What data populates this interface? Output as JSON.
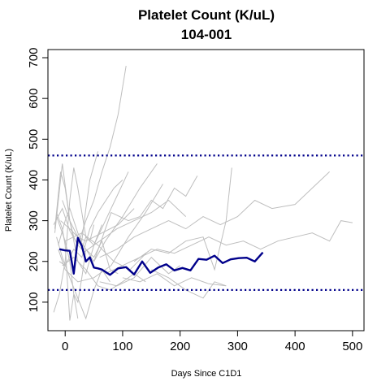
{
  "chart_data": {
    "type": "line",
    "title": "Platelet Count (K/uL)",
    "subtitle": "104-001",
    "xlabel": "Days Since C1D1",
    "ylabel": "Platelet Count (K/uL)",
    "xlim": [
      -30,
      520
    ],
    "ylim": [
      30,
      720
    ],
    "xticks": [
      0,
      100,
      200,
      300,
      400,
      500
    ],
    "yticks": [
      100,
      200,
      300,
      400,
      500,
      600,
      700
    ],
    "grid": false,
    "reference_lines": [
      {
        "y": 130,
        "color": "#00008b",
        "style": "dotted"
      },
      {
        "y": 460,
        "color": "#00008b",
        "style": "dotted"
      }
    ],
    "highlight_series": {
      "color": "#00008b",
      "x": [
        -10,
        0,
        8,
        15,
        22,
        29,
        36,
        43,
        50,
        57,
        64,
        78,
        92,
        106,
        120,
        134,
        148,
        162,
        176,
        190,
        204,
        218,
        232,
        246,
        260,
        274,
        288,
        302,
        316,
        330,
        344
      ],
      "values": [
        230,
        227,
        226,
        170,
        258,
        238,
        200,
        210,
        185,
        183,
        180,
        167,
        183,
        186,
        168,
        200,
        172,
        185,
        193,
        178,
        184,
        178,
        206,
        204,
        214,
        196,
        205,
        208,
        209,
        200,
        222
      ]
    },
    "background_series": {
      "color": "#bebebe",
      "lines": [
        {
          "x": [
            -20,
            -5,
            8,
            22,
            36,
            50,
            64,
            78,
            92,
            106
          ],
          "values": [
            290,
            330,
            275,
            240,
            300,
            350,
            420,
            480,
            560,
            680
          ]
        },
        {
          "x": [
            -15,
            0,
            8,
            15,
            22,
            29,
            36,
            50,
            64,
            78,
            92
          ],
          "values": [
            310,
            250,
            200,
            120,
            100,
            160,
            230,
            210,
            250,
            180,
            170
          ]
        },
        {
          "x": [
            -18,
            -8,
            0,
            8,
            15,
            22,
            29,
            36,
            43,
            50
          ],
          "values": [
            280,
            420,
            380,
            300,
            260,
            240,
            230,
            260,
            250,
            290
          ]
        },
        {
          "x": [
            -15,
            -5,
            0,
            8,
            15,
            22
          ],
          "values": [
            320,
            280,
            240,
            55,
            120,
            60
          ]
        },
        {
          "x": [
            -12,
            0,
            8,
            15,
            22,
            29,
            36,
            43,
            57
          ],
          "values": [
            240,
            300,
            330,
            300,
            270,
            250,
            330,
            400,
            470
          ]
        },
        {
          "x": [
            -20,
            -10,
            0,
            8,
            15,
            22,
            36,
            50,
            70,
            90,
            110
          ],
          "values": [
            75,
            120,
            200,
            350,
            430,
            380,
            260,
            240,
            300,
            360,
            420
          ]
        },
        {
          "x": [
            -15,
            -5,
            8,
            22,
            36,
            50,
            64,
            78
          ],
          "values": [
            260,
            210,
            160,
            110,
            60,
            130,
            180,
            150
          ]
        },
        {
          "x": [
            -10,
            0,
            15,
            29,
            43,
            57,
            71,
            85,
            100
          ],
          "values": [
            200,
            190,
            230,
            210,
            280,
            320,
            350,
            380,
            400
          ]
        },
        {
          "x": [
            -5,
            8,
            22,
            36,
            50,
            70,
            100,
            130,
            160
          ],
          "values": [
            350,
            300,
            260,
            230,
            200,
            250,
            310,
            380,
            440
          ]
        },
        {
          "x": [
            -18,
            -5,
            8,
            22,
            36,
            50,
            64
          ],
          "values": [
            270,
            440,
            300,
            200,
            170,
            240,
            290
          ]
        },
        {
          "x": [
            -8,
            8,
            22,
            36,
            64,
            92,
            120
          ],
          "values": [
            300,
            280,
            260,
            250,
            270,
            290,
            330
          ]
        },
        {
          "x": [
            -12,
            0,
            22,
            50,
            80,
            110,
            140,
            170
          ],
          "values": [
            230,
            180,
            150,
            160,
            190,
            260,
            320,
            390
          ]
        },
        {
          "x": [
            -5,
            15,
            36,
            57,
            78,
            100,
            120,
            140
          ],
          "values": [
            190,
            210,
            180,
            140,
            130,
            150,
            170,
            150
          ]
        },
        {
          "x": [
            0,
            29,
            57,
            85,
            113,
            141
          ],
          "values": [
            250,
            270,
            240,
            200,
            180,
            220
          ]
        },
        {
          "x": [
            50,
            80,
            110,
            130,
            150,
            170,
            190,
            210,
            230
          ],
          "values": [
            200,
            320,
            300,
            310,
            350,
            330,
            380,
            360,
            410
          ]
        },
        {
          "x": [
            60,
            90,
            120,
            150,
            180,
            210,
            240,
            270,
            300,
            330,
            360,
            400,
            430,
            460
          ],
          "values": [
            210,
            230,
            260,
            280,
            300,
            280,
            310,
            290,
            310,
            350,
            330,
            340,
            380,
            420
          ]
        },
        {
          "x": [
            70,
            100,
            130,
            160,
            190,
            220,
            250,
            280,
            310,
            340,
            370,
            400,
            430,
            460,
            480,
            500
          ],
          "values": [
            170,
            190,
            210,
            230,
            220,
            240,
            260,
            240,
            250,
            230,
            250,
            260,
            270,
            250,
            300,
            295
          ]
        },
        {
          "x": [
            60,
            90,
            120,
            150,
            180,
            200
          ],
          "values": [
            150,
            140,
            160,
            210,
            170,
            190
          ]
        },
        {
          "x": [
            100,
            130,
            160,
            190,
            220,
            250,
            280
          ],
          "values": [
            160,
            150,
            170,
            140,
            160,
            145,
            140
          ]
        },
        {
          "x": [
            120,
            150,
            180,
            210,
            240,
            260,
            280,
            290
          ],
          "values": [
            200,
            230,
            220,
            250,
            260,
            180,
            300,
            430
          ]
        },
        {
          "x": [
            150,
            180,
            210,
            240,
            260,
            280
          ],
          "values": [
            180,
            160,
            130,
            110,
            150,
            140
          ]
        },
        {
          "x": [
            30,
            60,
            90,
            120,
            150,
            180,
            210
          ],
          "values": [
            220,
            250,
            280,
            300,
            320,
            350,
            310
          ]
        }
      ]
    }
  }
}
